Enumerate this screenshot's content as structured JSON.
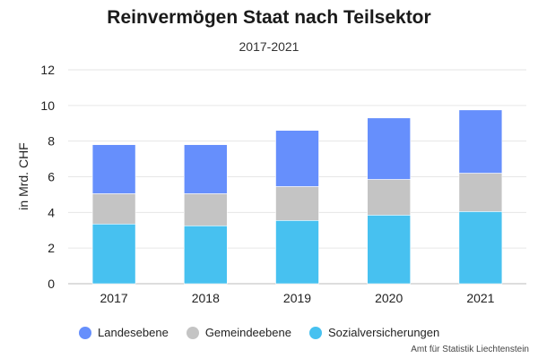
{
  "chart_data": {
    "type": "bar",
    "stacked": true,
    "title": "Reinvermögen Staat nach Teilsektor",
    "subtitle": "2017-2021",
    "ylabel": "in Mrd. CHF",
    "xlabel": "",
    "categories": [
      "2017",
      "2018",
      "2019",
      "2020",
      "2021"
    ],
    "ylim": [
      0,
      12
    ],
    "yticks": [
      "0",
      "2",
      "4",
      "6",
      "8",
      "10",
      "12"
    ],
    "grid": true,
    "legend_position": "bottom",
    "series": [
      {
        "name": "Sozialversicherungen",
        "color": "#47c1f0",
        "values": [
          3.35,
          3.25,
          3.55,
          3.85,
          4.05
        ]
      },
      {
        "name": "Gemeindeebene",
        "color": "#c4c4c4",
        "values": [
          1.7,
          1.8,
          1.9,
          2.0,
          2.15
        ]
      },
      {
        "name": "Landesebene",
        "color": "#668ffc",
        "values": [
          2.75,
          2.75,
          3.15,
          3.45,
          3.55
        ]
      }
    ],
    "legend_order": [
      "Landesebene",
      "Gemeindeebene",
      "Sozialversicherungen"
    ]
  },
  "footer": {
    "source": "Amt für Statistik Liechtenstein"
  }
}
